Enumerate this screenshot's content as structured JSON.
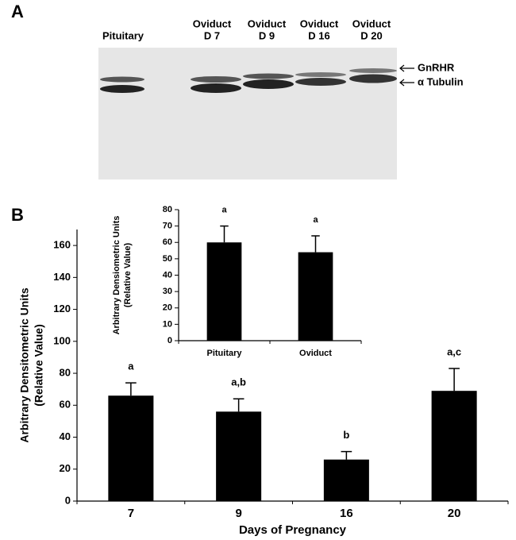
{
  "blot": {
    "panel_label": "A",
    "lanes": [
      [
        "Pituitary"
      ],
      [
        "Oviduct",
        "D 7"
      ],
      [
        "Oviduct",
        "D 9"
      ],
      [
        "Oviduct",
        "D 16"
      ],
      [
        "Oviduct",
        "D 20"
      ]
    ],
    "bands": [
      "GnRHR",
      "α Tubulin"
    ]
  },
  "chart_data": [
    {
      "type": "bar",
      "panel_label": "B",
      "xlabel": "Days of Pregnancy",
      "ylabel": [
        "Arbitrary Densitometric Units",
        "(Relative Value)"
      ],
      "categories": [
        "7",
        "9",
        "16",
        "20"
      ],
      "values": [
        66,
        56,
        26,
        69
      ],
      "errors": [
        8,
        8,
        5,
        14
      ],
      "annotations": [
        "a",
        "a,b",
        "b",
        "a,c"
      ],
      "color": "#000000",
      "ylim": [
        0,
        170
      ],
      "yticks": [
        0,
        20,
        40,
        60,
        80,
        100,
        120,
        140,
        160
      ]
    },
    {
      "type": "bar",
      "ylabel": [
        "Arbitrary Densiometric Units",
        "(Relative Value)"
      ],
      "categories": [
        "Pituitary",
        "Oviduct"
      ],
      "values": [
        60,
        54
      ],
      "errors": [
        10,
        10
      ],
      "annotations": [
        "a",
        "a"
      ],
      "color": "#000000",
      "ylim": [
        0,
        80
      ],
      "yticks": [
        0,
        10,
        20,
        30,
        40,
        50,
        60,
        70,
        80
      ]
    }
  ]
}
